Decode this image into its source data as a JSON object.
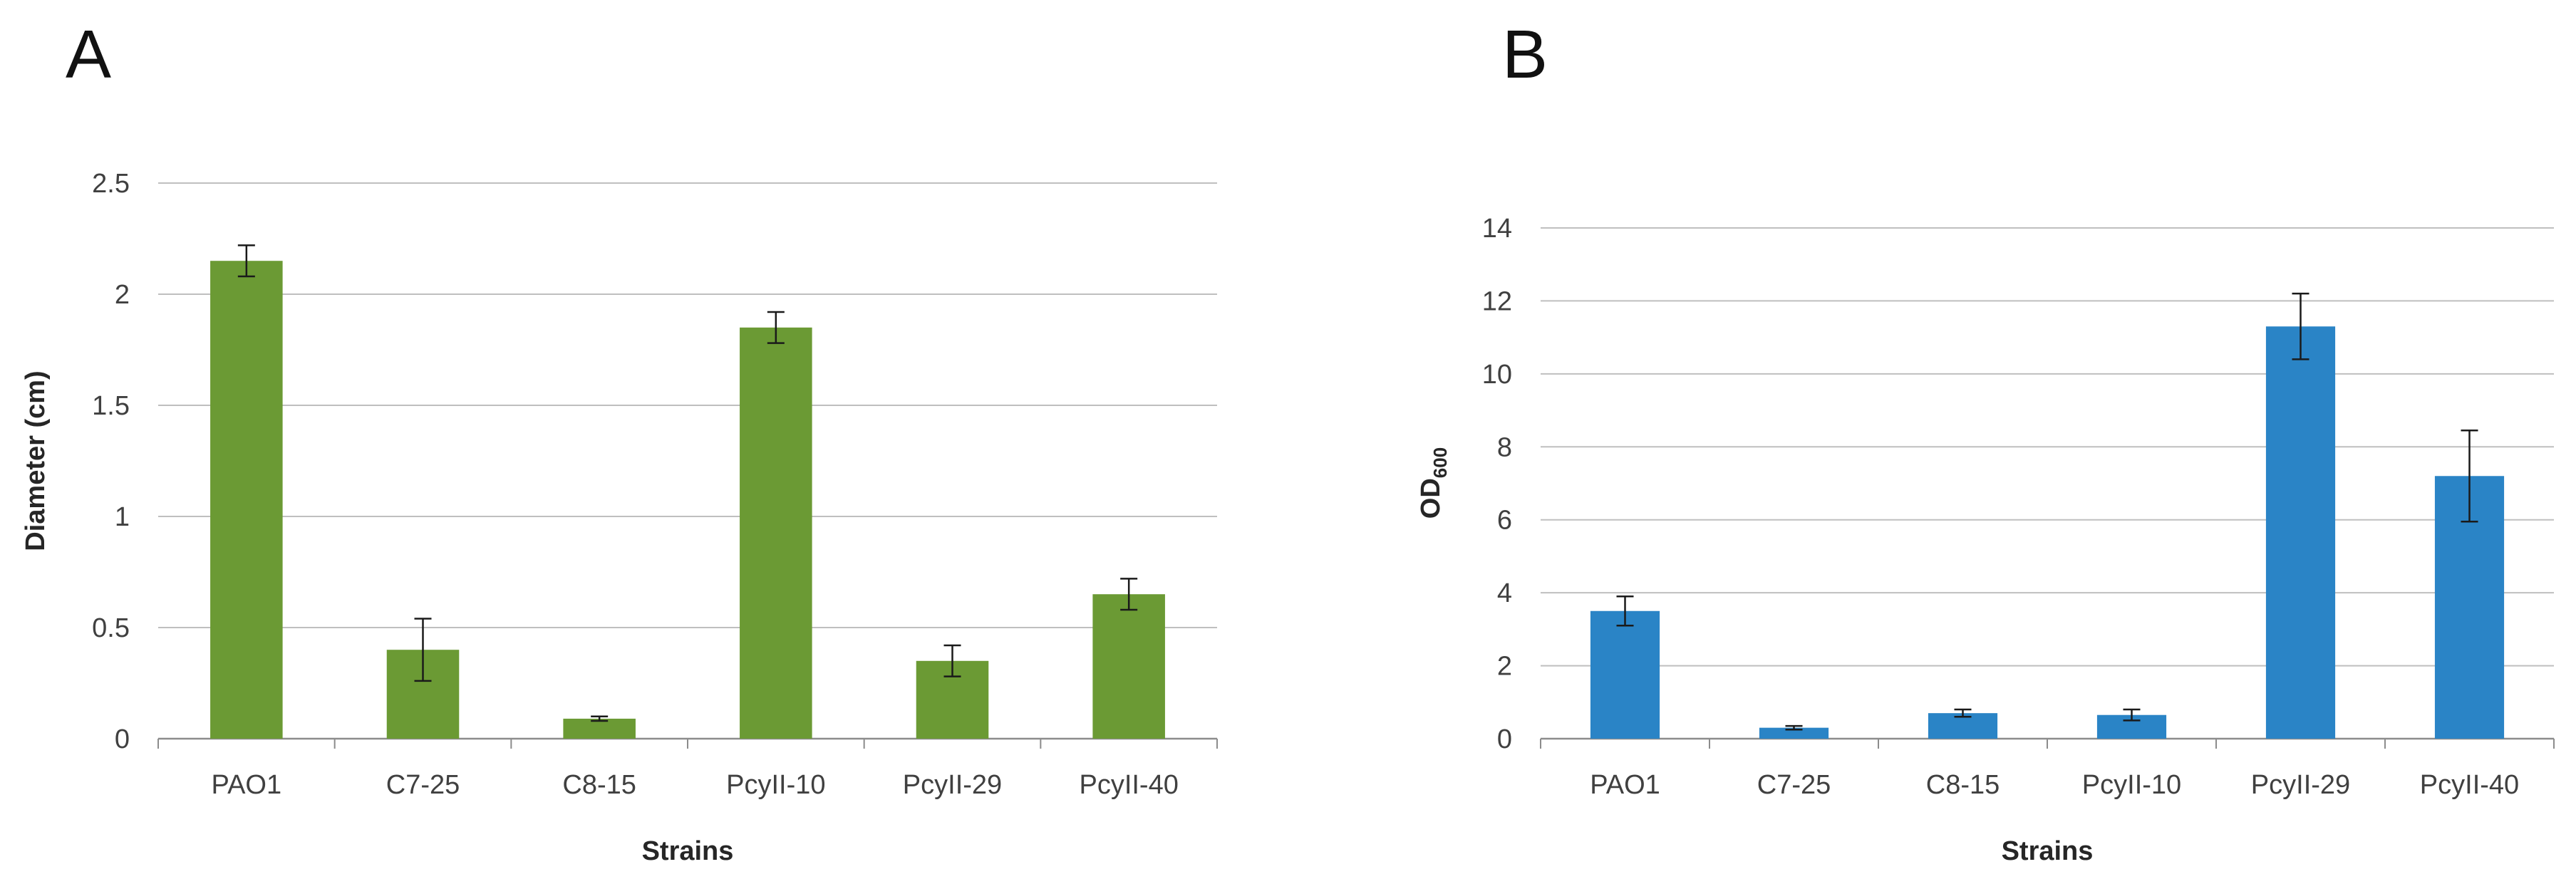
{
  "chart_data": [
    {
      "panel": "A",
      "type": "bar",
      "categories": [
        "PAO1",
        "C7-25",
        "C8-15",
        "PcyII-10",
        "PcyII-29",
        "PcyII-40"
      ],
      "values": [
        2.15,
        0.4,
        0.09,
        1.85,
        0.35,
        0.65
      ],
      "errors": [
        0.07,
        0.14,
        0.01,
        0.07,
        0.07,
        0.07
      ],
      "title": "",
      "xlabel": "Strains",
      "ylabel": "Diameter (cm)",
      "ylim": [
        0,
        2.5
      ],
      "yticks": [
        "0",
        "0.5",
        "1",
        "1.5",
        "2",
        "2.5"
      ],
      "grid": true,
      "color": "#6b9a34"
    },
    {
      "panel": "B",
      "type": "bar",
      "categories": [
        "PAO1",
        "C7-25",
        "C8-15",
        "PcyII-10",
        "PcyII-29",
        "PcyII-40"
      ],
      "values": [
        3.5,
        0.3,
        0.7,
        0.65,
        11.3,
        7.2
      ],
      "errors": [
        0.4,
        0.05,
        0.1,
        0.15,
        0.9,
        1.25
      ],
      "title": "",
      "xlabel": "Strains",
      "ylabel": "OD",
      "ylabel_subscript": "600",
      "ylim": [
        0,
        14
      ],
      "yticks": [
        "0",
        "2",
        "4",
        "6",
        "8",
        "10",
        "12",
        "14"
      ],
      "grid": true,
      "color": "#2a84c6"
    }
  ]
}
